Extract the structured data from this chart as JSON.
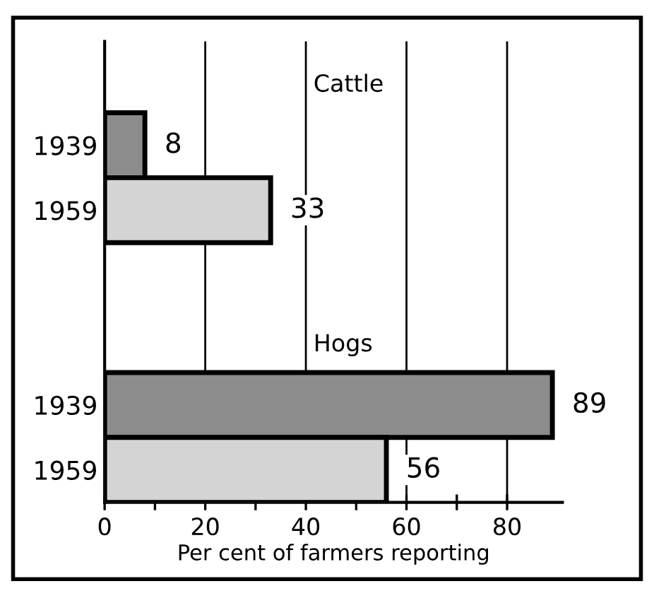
{
  "chart_data": {
    "type": "bar",
    "orientation": "horizontal",
    "xlabel": "Per cent of farmers reporting",
    "categories": [
      "1939",
      "1959",
      null,
      null,
      "1939",
      "1959"
    ],
    "values": [
      8,
      33,
      null,
      null,
      89,
      56
    ],
    "colors": [
      "#8c8c8c",
      "#d4d4d4",
      null,
      null,
      "#8c8c8c",
      "#d4d4d4"
    ],
    "annotations": [
      "Cattle",
      "Hogs"
    ],
    "data_labels": true,
    "xlim": [
      0,
      91
    ],
    "xticks": [
      0,
      {
        "value": 10,
        "label": null
      },
      20,
      {
        "value": 30,
        "label": null
      },
      40,
      {
        "value": 50,
        "label": null
      },
      60,
      {
        "value": 70,
        "label": null
      },
      80
    ],
    "grid": "x"
  }
}
